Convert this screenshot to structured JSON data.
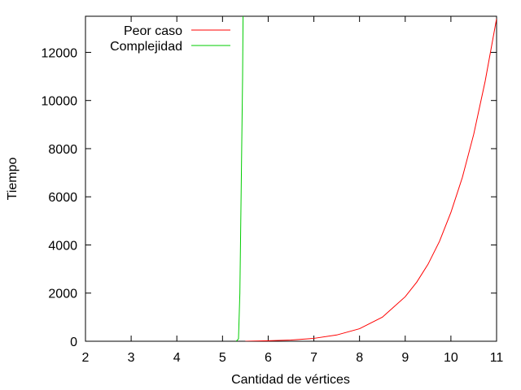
{
  "chart_data": {
    "type": "line",
    "xlabel": "Cantidad de vértices",
    "ylabel": "Tiempo",
    "xlim": [
      2,
      11
    ],
    "ylim": [
      0,
      13500
    ],
    "xticks": [
      2,
      3,
      4,
      5,
      6,
      7,
      8,
      9,
      10,
      11
    ],
    "yticks": [
      0,
      2000,
      4000,
      6000,
      8000,
      10000,
      12000
    ],
    "grid": false,
    "legend_position": "top-left",
    "series": [
      {
        "name": "Peor caso",
        "color": "#ff0000",
        "x": [
          5.5,
          6,
          6.5,
          7,
          7.5,
          8,
          8.5,
          9,
          9.25,
          9.5,
          9.75,
          10,
          10.25,
          10.5,
          10.75,
          11
        ],
        "y": [
          0,
          20,
          50,
          120,
          260,
          520,
          1000,
          1850,
          2450,
          3200,
          4150,
          5350,
          6800,
          8600,
          10800,
          13400
        ]
      },
      {
        "name": "Complejidad",
        "color": "#00cc00",
        "x": [
          5.3,
          5.35,
          5.38,
          5.4,
          5.42,
          5.44,
          5.45
        ],
        "y": [
          0,
          100,
          2000,
          5000,
          8000,
          11000,
          13500
        ]
      }
    ]
  }
}
